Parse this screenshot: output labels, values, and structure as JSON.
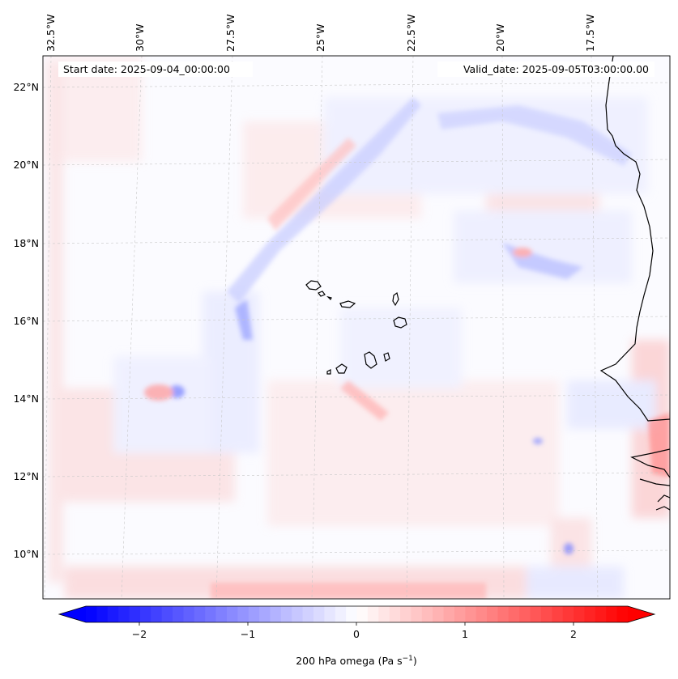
{
  "map": {
    "start_date": "Start date: 2025-09-04_00:00:00",
    "valid_date": "Valid_date: 2025-09-05T03:00:00.00",
    "lon_labels": [
      "32.5°W",
      "30°W",
      "27.5°W",
      "25°W",
      "22.5°W",
      "20°W",
      "17.5°W"
    ],
    "lat_labels": [
      "22°N",
      "20°N",
      "18°N",
      "16°N",
      "14°N",
      "12°N",
      "10°N"
    ],
    "colorbar": {
      "ticks": [
        "−2",
        "−1",
        "0",
        "1",
        "2"
      ],
      "label": "200 hPa omega (Pa s",
      "label_sup": "−1",
      "label_end": ")",
      "min": -2.5,
      "max": 2.5,
      "colors": {
        "negative": "#0000ff",
        "zero": "#ffffff",
        "positive": "#ff0000"
      }
    }
  }
}
